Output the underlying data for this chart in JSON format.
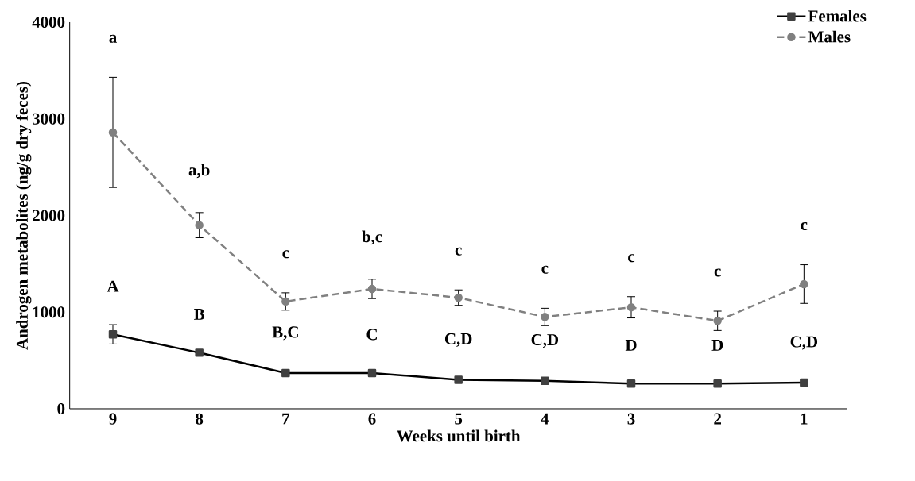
{
  "chart_data": {
    "type": "line",
    "xlabel": "Weeks until birth",
    "ylabel": "Androgen metabolites (ng/g dry feces)",
    "categories": [
      "9",
      "8",
      "7",
      "6",
      "5",
      "4",
      "3",
      "2",
      "1"
    ],
    "series": [
      {
        "name": "Females",
        "color": "#000000",
        "marker": "square",
        "line_style": "solid",
        "values": [
          770,
          580,
          370,
          370,
          300,
          290,
          260,
          260,
          270
        ],
        "errors": [
          100,
          null,
          null,
          null,
          null,
          null,
          null,
          null,
          null
        ]
      },
      {
        "name": "Males",
        "color": "#808080",
        "marker": "circle",
        "line_style": "dashed",
        "values": [
          2860,
          1900,
          1110,
          1240,
          1150,
          950,
          1050,
          910,
          1290
        ],
        "errors": [
          570,
          130,
          90,
          100,
          80,
          90,
          110,
          100,
          200
        ]
      }
    ],
    "ylim": [
      0,
      4000
    ],
    "yticks": [
      0,
      1000,
      2000,
      3000,
      4000
    ],
    "grid": false,
    "legend": "top right",
    "annotations": [
      "a",
      "a,b",
      "c",
      "b,c",
      "c",
      "c",
      "c",
      "c",
      "c",
      "A",
      "B",
      "B,C",
      "C",
      "C,D",
      "C,D",
      "D",
      "D",
      "C,D"
    ]
  }
}
